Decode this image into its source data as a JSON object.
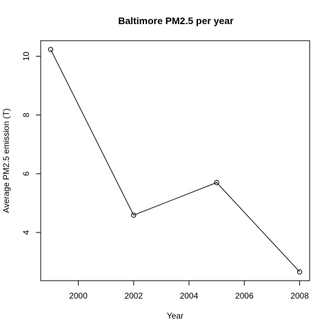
{
  "chart_data": {
    "type": "line",
    "title": "Baltimore PM2.5 per year",
    "xlabel": "Year",
    "ylabel": "Average PM2.5 emission (T)",
    "x": [
      1999,
      2002,
      2005,
      2008
    ],
    "series": [
      {
        "values": [
          10.23,
          4.59,
          5.7,
          2.66
        ]
      }
    ],
    "xticks": [
      2000,
      2002,
      2004,
      2006,
      2008
    ],
    "yticks": [
      4,
      6,
      8,
      10
    ],
    "xlim": [
      1998.64,
      2008.36
    ],
    "ylim": [
      2.36,
      10.53
    ],
    "markers": "open-circle",
    "grid": false,
    "colors": {
      "line": "#000000",
      "frame": "#000000"
    }
  }
}
